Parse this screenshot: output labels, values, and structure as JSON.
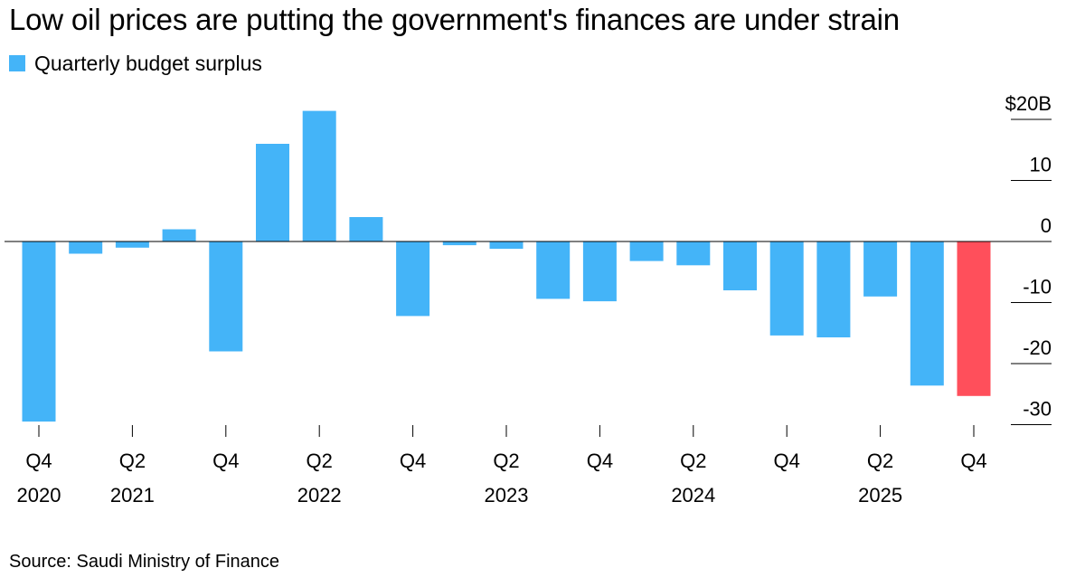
{
  "title": "Low oil prices are putting the government's finances are under strain",
  "legend": {
    "label": "Quarterly budget surplus",
    "color": "#44b4f8"
  },
  "source": "Source: Saudi Ministry of Finance",
  "colors": {
    "bar": "#44b4f8",
    "highlight": "#ff4f5b",
    "axis": "#000000"
  },
  "chart_data": {
    "type": "bar",
    "title": "Low oil prices are putting the government's finances are under strain",
    "xlabel": "",
    "ylabel": "",
    "ylim": [
      -30,
      20
    ],
    "categories": [
      "Q4 2020",
      "Q1 2021",
      "Q2 2021",
      "Q3 2021",
      "Q4 2021",
      "Q1 2022",
      "Q2 2022",
      "Q3 2022",
      "Q4 2022",
      "Q1 2023",
      "Q2 2023",
      "Q3 2023",
      "Q4 2023",
      "Q1 2024",
      "Q2 2024",
      "Q3 2024",
      "Q4 2024",
      "Q1 2025",
      "Q2 2025",
      "Q3 2025",
      "Q4 2025"
    ],
    "series": [
      {
        "name": "Quarterly budget surplus",
        "values": [
          -29.5,
          -2.0,
          -1.0,
          2.0,
          -18.0,
          16.0,
          21.4,
          4.0,
          -12.2,
          -0.6,
          -1.2,
          -9.4,
          -9.8,
          -3.2,
          -3.9,
          -8.0,
          -15.4,
          -15.7,
          -9.0,
          -23.6,
          -25.3
        ],
        "highlight_index": 20
      }
    ],
    "y_ticks": [
      {
        "value": 20,
        "label": "$20B"
      },
      {
        "value": 10,
        "label": "10"
      },
      {
        "value": 0,
        "label": "0"
      },
      {
        "value": -10,
        "label": "-10"
      },
      {
        "value": -20,
        "label": "-20"
      },
      {
        "value": -30,
        "label": "-30"
      }
    ],
    "x_ticks": [
      {
        "index": 0,
        "quarter": "Q4",
        "year": "2020"
      },
      {
        "index": 2,
        "quarter": "Q2",
        "year": "2021"
      },
      {
        "index": 4,
        "quarter": "Q4",
        "year": ""
      },
      {
        "index": 6,
        "quarter": "Q2",
        "year": "2022"
      },
      {
        "index": 8,
        "quarter": "Q4",
        "year": ""
      },
      {
        "index": 10,
        "quarter": "Q2",
        "year": "2023"
      },
      {
        "index": 12,
        "quarter": "Q4",
        "year": ""
      },
      {
        "index": 14,
        "quarter": "Q2",
        "year": "2024"
      },
      {
        "index": 16,
        "quarter": "Q4",
        "year": ""
      },
      {
        "index": 18,
        "quarter": "Q2",
        "year": "2025"
      },
      {
        "index": 20,
        "quarter": "Q4",
        "year": ""
      }
    ],
    "grid": false,
    "legend_position": "top-left"
  }
}
